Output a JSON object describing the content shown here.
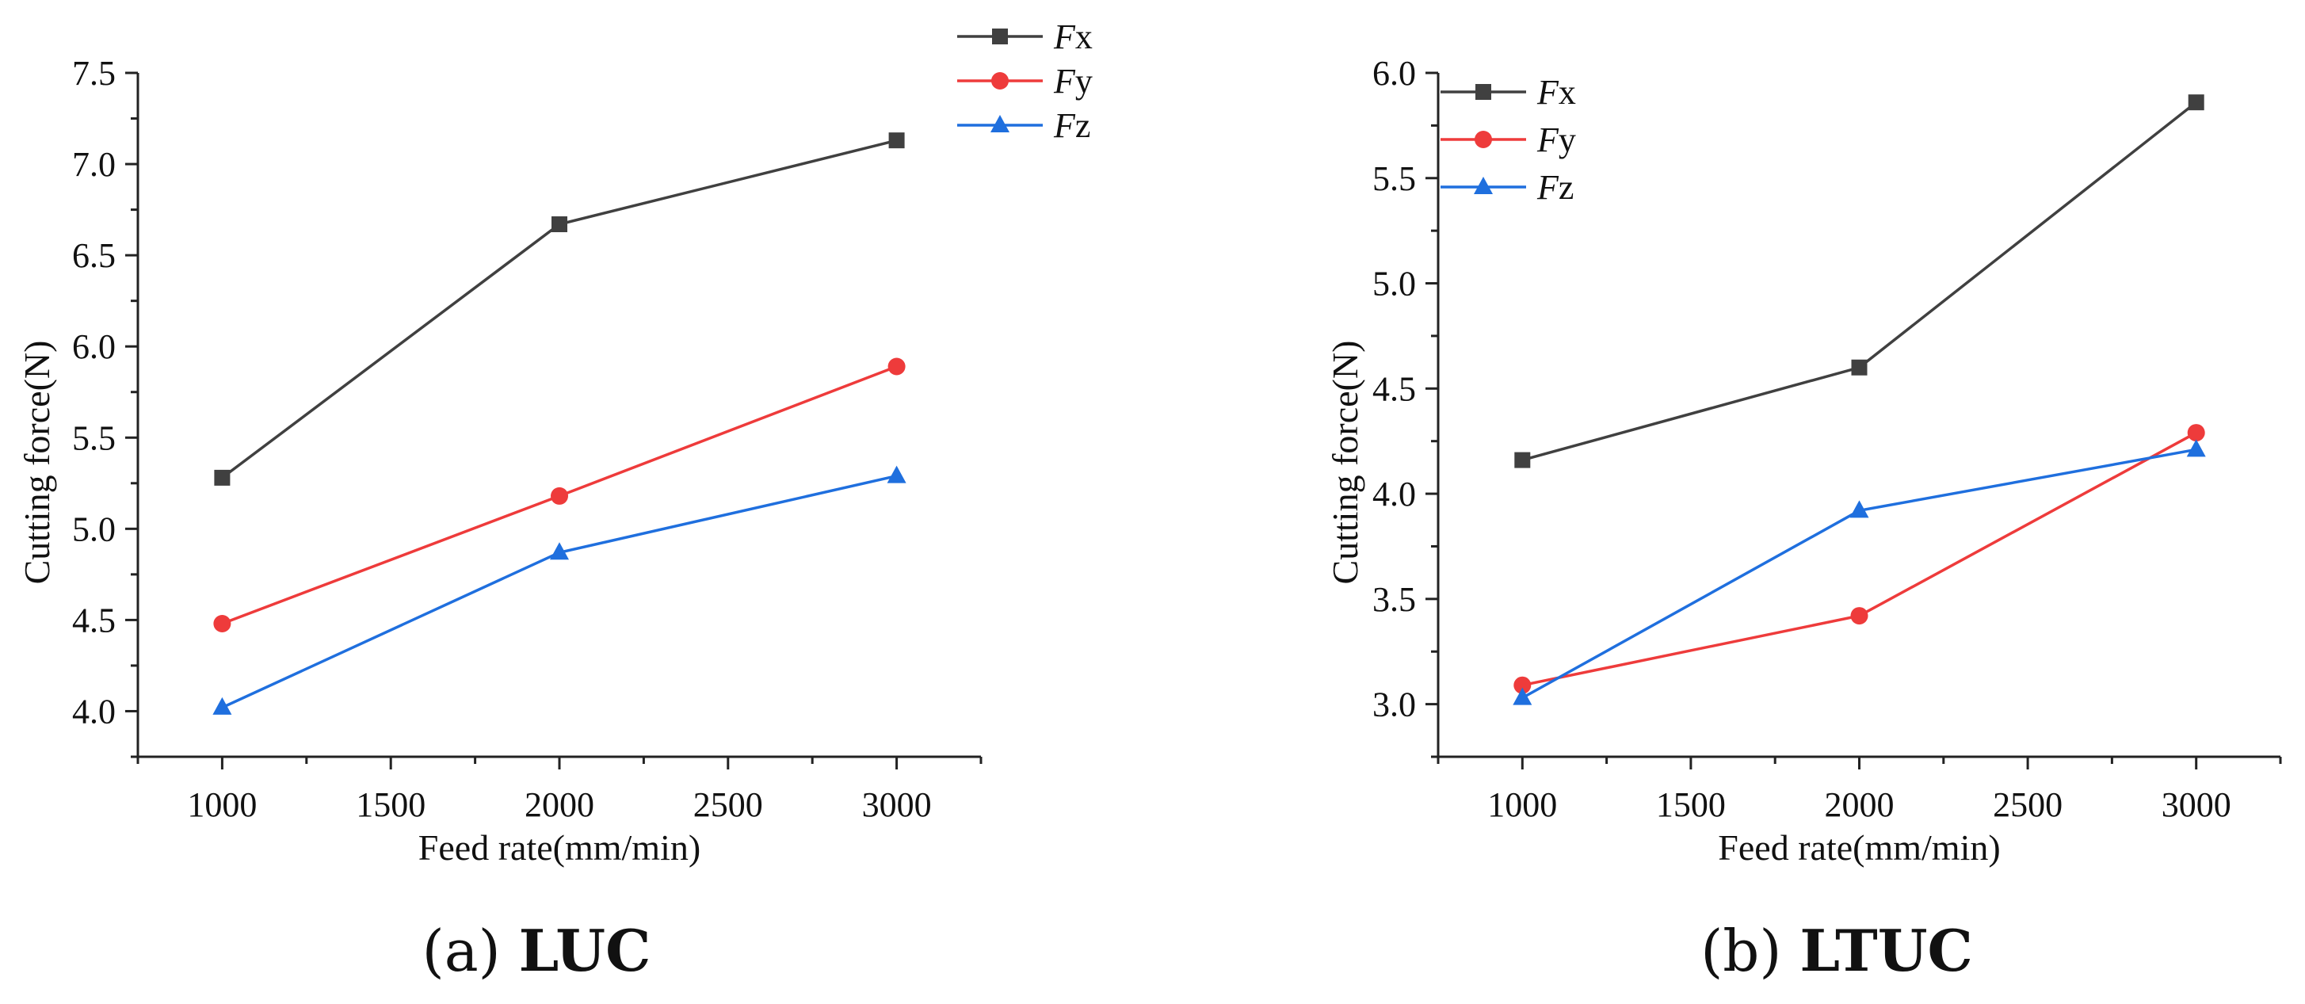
{
  "chart_data": [
    {
      "type": "line",
      "caption_label": "(a)",
      "caption_title": "LUC",
      "xlabel": "Feed rate(mm/min)",
      "ylabel": "Cutting force(N)",
      "x": [
        1000,
        2000,
        3000
      ],
      "xlim": [
        750,
        3250
      ],
      "xticks": [
        1000,
        1500,
        2000,
        2500,
        3000
      ],
      "xtick_labels": [
        "1000",
        "1500",
        "2000",
        "2500",
        "3000"
      ],
      "ylim": [
        3.75,
        7.5
      ],
      "yticks": [
        4.0,
        4.5,
        5.0,
        5.5,
        6.0,
        6.5,
        7.0,
        7.5
      ],
      "ytick_labels": [
        "4.0",
        "4.5",
        "5.0",
        "5.5",
        "6.0",
        "6.5",
        "7.0",
        "7.5"
      ],
      "legend_position": "top-right-outside",
      "series": [
        {
          "name": "Fx",
          "prefix": "F",
          "suffix": "x",
          "marker": "square",
          "color": "#404040",
          "values": [
            5.28,
            6.67,
            7.13
          ]
        },
        {
          "name": "Fy",
          "prefix": "F",
          "suffix": "y",
          "marker": "circle",
          "color": "#ee3b3b",
          "values": [
            4.48,
            5.18,
            5.89
          ]
        },
        {
          "name": "Fz",
          "prefix": "F",
          "suffix": "z",
          "marker": "triangle",
          "color": "#1f6fde",
          "values": [
            4.02,
            4.87,
            5.29
          ]
        }
      ]
    },
    {
      "type": "line",
      "caption_label": "(b)",
      "caption_title": "LTUC",
      "xlabel": "Feed rate(mm/min)",
      "ylabel": "Cutting force(N)",
      "x": [
        1000,
        2000,
        3000
      ],
      "xlim": [
        750,
        3250
      ],
      "xticks": [
        1000,
        1500,
        2000,
        2500,
        3000
      ],
      "xtick_labels": [
        "1000",
        "1500",
        "2000",
        "2500",
        "3000"
      ],
      "ylim": [
        2.75,
        6.0
      ],
      "yticks": [
        3.0,
        3.5,
        4.0,
        4.5,
        5.0,
        5.5,
        6.0
      ],
      "ytick_labels": [
        "3.0",
        "3.5",
        "4.0",
        "4.5",
        "5.0",
        "5.5",
        "6.0"
      ],
      "legend_position": "top-left",
      "series": [
        {
          "name": "Fx",
          "prefix": "F",
          "suffix": "x",
          "marker": "square",
          "color": "#404040",
          "values": [
            4.16,
            4.6,
            5.86
          ]
        },
        {
          "name": "Fy",
          "prefix": "F",
          "suffix": "y",
          "marker": "circle",
          "color": "#ee3b3b",
          "values": [
            3.09,
            3.42,
            4.29
          ]
        },
        {
          "name": "Fz",
          "prefix": "F",
          "suffix": "z",
          "marker": "triangle",
          "color": "#1f6fde",
          "values": [
            3.03,
            3.92,
            4.21
          ]
        }
      ]
    }
  ]
}
